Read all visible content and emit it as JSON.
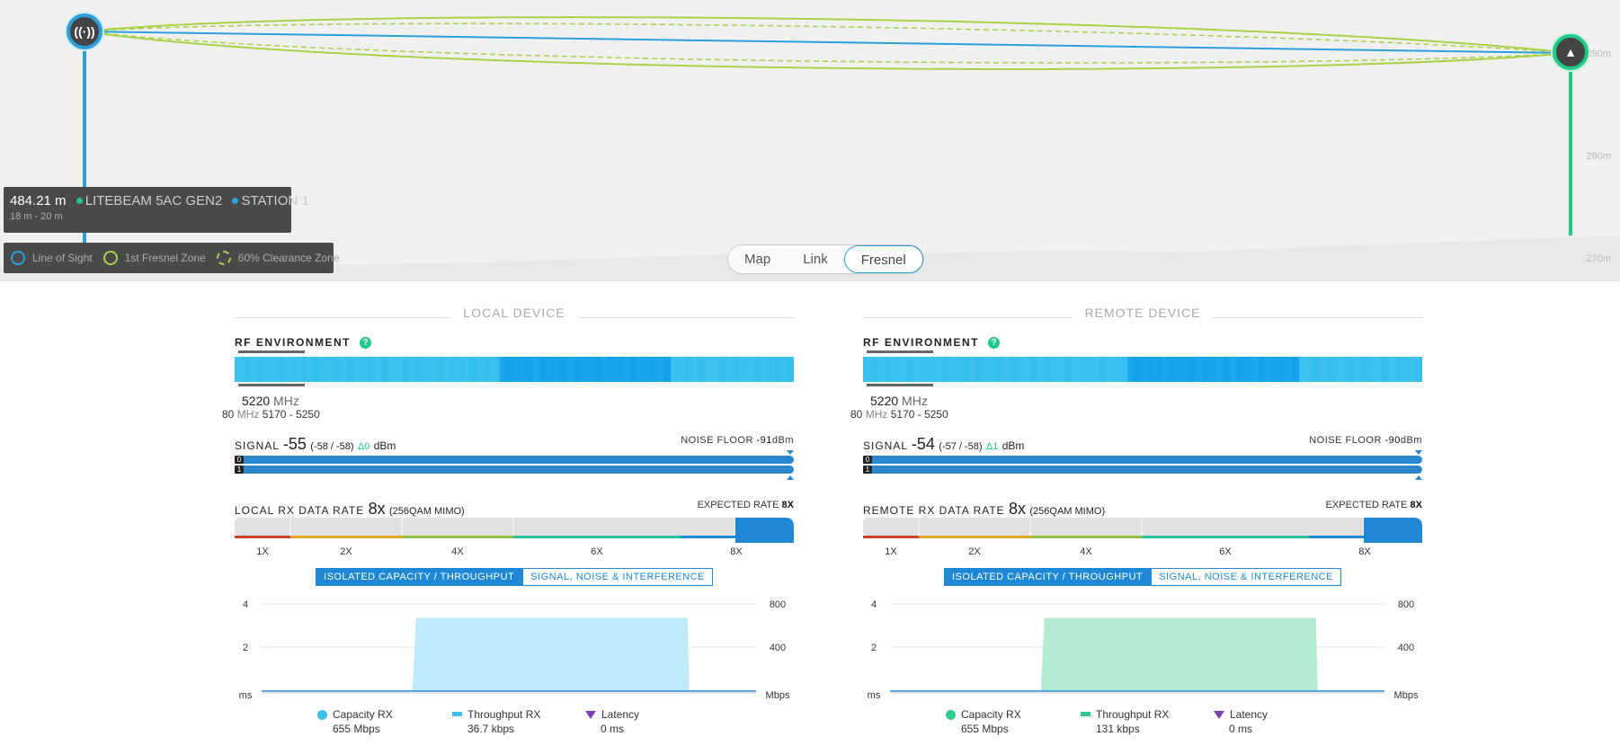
{
  "link": {
    "distance": "484.21 m",
    "local_name": "LITEBEAM 5AC GEN2",
    "remote_name": "STATION 1",
    "heights": "18 m - 20 m",
    "elevations": [
      "290m",
      "280m",
      "270m"
    ],
    "node_local_icon": "antenna-icon",
    "node_remote_icon": "tower-icon"
  },
  "legend": {
    "line_of_sight": "Line of Sight",
    "fresnel": "1st Fresnel Zone",
    "clearance": "60% Clearance Zone"
  },
  "view_tabs": [
    {
      "label": "Map",
      "active": false
    },
    {
      "label": "Link",
      "active": false
    },
    {
      "label": "Fresnel",
      "active": true
    }
  ],
  "local": {
    "title": "LOCAL DEVICE",
    "rf_label": "RF ENVIRONMENT",
    "help": "?",
    "freq": "5220",
    "freq_unit": "MHz",
    "band_width": "80",
    "band_unit": "MHz",
    "band_range": "5170 - 5250",
    "signal_label": "SIGNAL",
    "signal_value": "-55",
    "signal_chains": "(-58 / -58)",
    "signal_delta": "Δ0",
    "signal_unit": "dBm",
    "noise_label": "NOISE FLOOR",
    "noise_value": "-91",
    "noise_unit": "dBm",
    "chain0": "0",
    "chain1": "1",
    "rate_label": "LOCAL RX DATA RATE",
    "rate_value": "8x",
    "rate_mode": "(256QAM MIMO)",
    "expected_label": "EXPECTED RATE",
    "expected_value": "8X",
    "ticks": [
      "1X",
      "2X",
      "4X",
      "6X",
      "8X"
    ],
    "tab_capacity": "ISOLATED CAPACITY / THROUGHPUT",
    "tab_signal": "SIGNAL, NOISE & INTERFERENCE",
    "chart_left_ticks": [
      "4",
      "2",
      "ms"
    ],
    "chart_right_ticks": [
      "800",
      "400",
      "Mbps"
    ],
    "cap_label": "Capacity RX",
    "cap_value": "655 Mbps",
    "thr_label": "Throughput RX",
    "thr_value": "36.7 kbps",
    "lat_label": "Latency",
    "lat_value": "0 ms",
    "accent": "#3ec1ee",
    "fill": "#bde9f8",
    "capacity_fraction_of_axis": 0.84
  },
  "remote": {
    "title": "REMOTE DEVICE",
    "rf_label": "RF ENVIRONMENT",
    "help": "?",
    "freq": "5220",
    "freq_unit": "MHz",
    "band_width": "80",
    "band_unit": "MHz",
    "band_range": "5170 - 5250",
    "signal_label": "SIGNAL",
    "signal_value": "-54",
    "signal_chains": "(-57 / -58)",
    "signal_delta": "Δ1",
    "signal_unit": "dBm",
    "noise_label": "NOISE FLOOR",
    "noise_value": "-90",
    "noise_unit": "dBm",
    "chain0": "0",
    "chain1": "1",
    "rate_label": "REMOTE RX DATA RATE",
    "rate_value": "8x",
    "rate_mode": "(256QAM MIMO)",
    "expected_label": "EXPECTED RATE",
    "expected_value": "8X",
    "ticks": [
      "1X",
      "2X",
      "4X",
      "6X",
      "8X"
    ],
    "tab_capacity": "ISOLATED CAPACITY / THROUGHPUT",
    "tab_signal": "SIGNAL, NOISE & INTERFERENCE",
    "chart_left_ticks": [
      "4",
      "2",
      "ms"
    ],
    "chart_right_ticks": [
      "800",
      "400",
      "Mbps"
    ],
    "cap_label": "Capacity RX",
    "cap_value": "655 Mbps",
    "thr_label": "Throughput RX",
    "thr_value": "131 kbps",
    "lat_label": "Latency",
    "lat_value": "0 ms",
    "accent": "#2dcc8f",
    "fill": "#b5ead5",
    "capacity_fraction_of_axis": 0.84
  },
  "colors": {
    "los": "#2b9fd9",
    "fresnel": "#a8d24a",
    "remote_mast": "#1ec98a",
    "latency": "#7b3fb0"
  }
}
